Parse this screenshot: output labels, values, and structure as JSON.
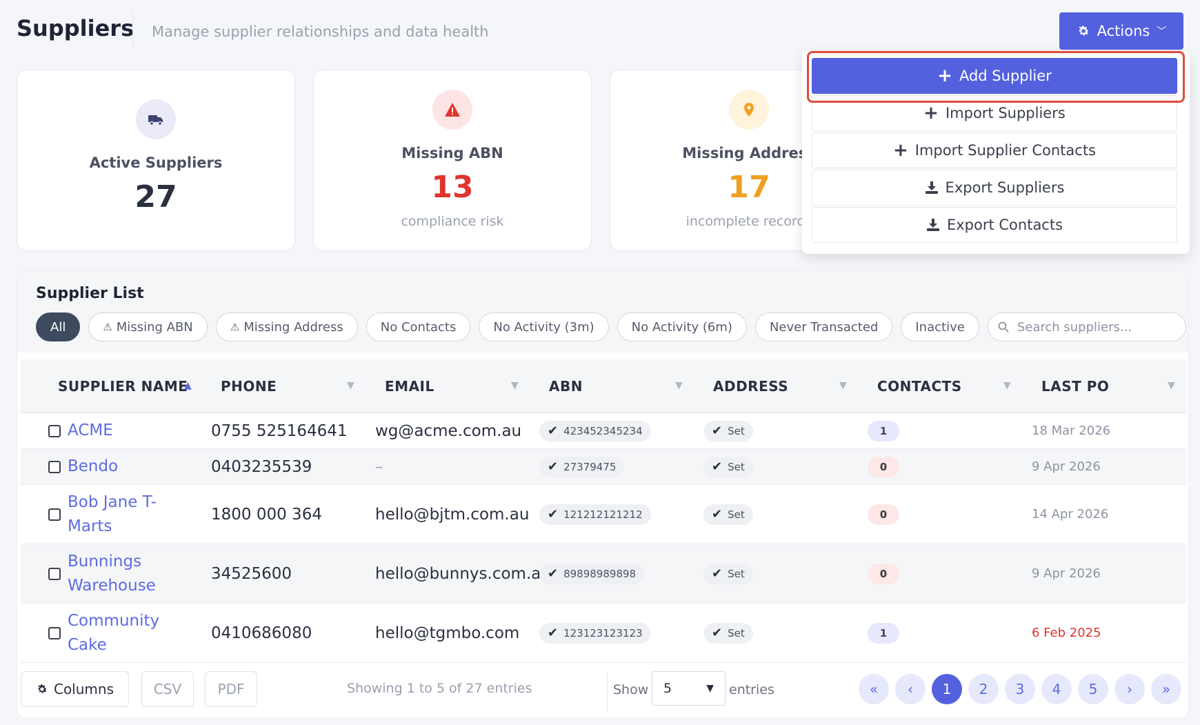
{
  "header": {
    "title": "Suppliers",
    "subtitle": "Manage supplier relationships and data health",
    "actions_label": "Actions"
  },
  "stats": {
    "active": {
      "label": "Active Suppliers",
      "value": "27",
      "color": "#2b3040",
      "icon": "truck-icon"
    },
    "missing_abn": {
      "label": "Missing ABN",
      "value": "13",
      "sub": "compliance risk",
      "color": "#e0342c",
      "icon": "warning-icon"
    },
    "missing_address": {
      "label": "Missing Address",
      "value": "17",
      "sub": "incomplete records",
      "color": "#f0a020",
      "icon": "map-pin-icon"
    }
  },
  "actions_menu": {
    "items": [
      {
        "label": "Add Supplier",
        "icon": "plus-icon"
      },
      {
        "label": "Import Suppliers",
        "icon": "plus-icon"
      },
      {
        "label": "Import Supplier Contacts",
        "icon": "plus-icon"
      },
      {
        "label": "Export Suppliers",
        "icon": "download-icon"
      },
      {
        "label": "Export Contacts",
        "icon": "download-icon"
      }
    ]
  },
  "list": {
    "title": "Supplier List",
    "filters": [
      "All",
      "Missing ABN",
      "Missing Address",
      "No Contacts",
      "No Activity (3m)",
      "No Activity (6m)",
      "Never Transacted",
      "Inactive"
    ],
    "search_placeholder": "Search suppliers...",
    "columns": [
      "SUPPLIER NAME",
      "PHONE",
      "EMAIL",
      "ABN",
      "ADDRESS",
      "CONTACTS",
      "LAST PO"
    ],
    "rows": [
      {
        "name": "ACME",
        "phone": "0755 525164641",
        "email": "wg@acme.com.au",
        "abn": "423452345234",
        "address": "Set",
        "contacts": "1",
        "last_po": "18 Mar 2026"
      },
      {
        "name": "Bendo",
        "phone": "0403235539",
        "email": "–",
        "abn": "27379475",
        "address": "Set",
        "contacts": "0",
        "last_po": "9 Apr 2026"
      },
      {
        "name": "Bob Jane T-Marts",
        "phone": "1800 000 364",
        "email": "hello@bjtm.com.au",
        "abn": "121212121212",
        "address": "Set",
        "contacts": "0",
        "last_po": "14 Apr 2026"
      },
      {
        "name": "Bunnings Warehouse",
        "phone": "34525600",
        "email": "hello@bunnys.com.au",
        "abn": "89898989898",
        "address": "Set",
        "contacts": "0",
        "last_po": "9 Apr 2026"
      },
      {
        "name": "Community Cake",
        "phone": "0410686080",
        "email": "hello@tgmbo.com",
        "abn": "123123123123",
        "address": "Set",
        "contacts": "1",
        "last_po": "6 Feb 2025"
      }
    ]
  },
  "footer": {
    "columns_label": "Columns",
    "csv_label": "CSV",
    "pdf_label": "PDF",
    "showing": "Showing 1 to 5 of 27 entries",
    "show_label": "Show",
    "page_size": "5",
    "entries_label": "entries",
    "pages": [
      "1",
      "2",
      "3",
      "4",
      "5"
    ],
    "current_page": "1"
  },
  "colors": {
    "accent": "#5361df",
    "danger": "#e0342c",
    "warning": "#f0a020"
  }
}
